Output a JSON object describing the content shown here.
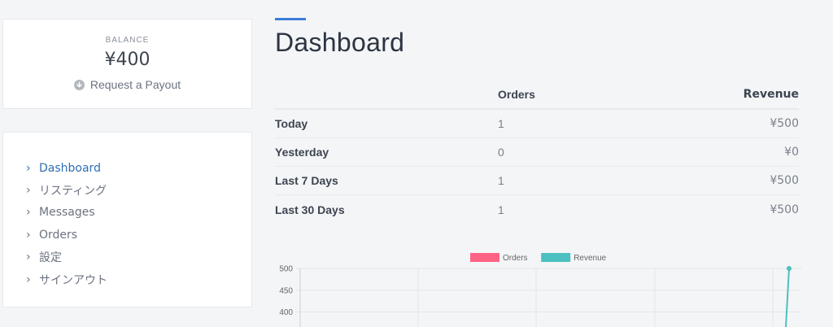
{
  "balance": {
    "label": "BALANCE",
    "amount": "¥400",
    "payout_label": "Request a Payout"
  },
  "nav": {
    "items": [
      {
        "label": "Dashboard",
        "active": true
      },
      {
        "label": "リスティング",
        "active": false
      },
      {
        "label": "Messages",
        "active": false
      },
      {
        "label": "Orders",
        "active": false
      },
      {
        "label": "設定",
        "active": false
      },
      {
        "label": "サインアウト",
        "active": false
      }
    ]
  },
  "page": {
    "title": "Dashboard"
  },
  "stats": {
    "headers": [
      "",
      "Orders",
      "Revenue"
    ],
    "rows": [
      {
        "label": "Today",
        "orders": "1",
        "revenue": "¥500"
      },
      {
        "label": "Yesterday",
        "orders": "0",
        "revenue": "¥0"
      },
      {
        "label": "Last 7 Days",
        "orders": "1",
        "revenue": "¥500"
      },
      {
        "label": "Last 30 Days",
        "orders": "1",
        "revenue": "¥500"
      }
    ]
  },
  "colors": {
    "accent": "#3b7dd8",
    "orders_series": "#ff6384",
    "revenue_series": "#4bc0c0"
  },
  "chart_data": {
    "type": "line",
    "series": [
      {
        "name": "Orders",
        "color": "#ff6384"
      },
      {
        "name": "Revenue",
        "color": "#4bc0c0",
        "last_value": 500
      }
    ],
    "ytick_labels": [
      "500",
      "450",
      "400"
    ],
    "ylim_visible": [
      400,
      500
    ],
    "legend": "top-center",
    "grid": true
  }
}
